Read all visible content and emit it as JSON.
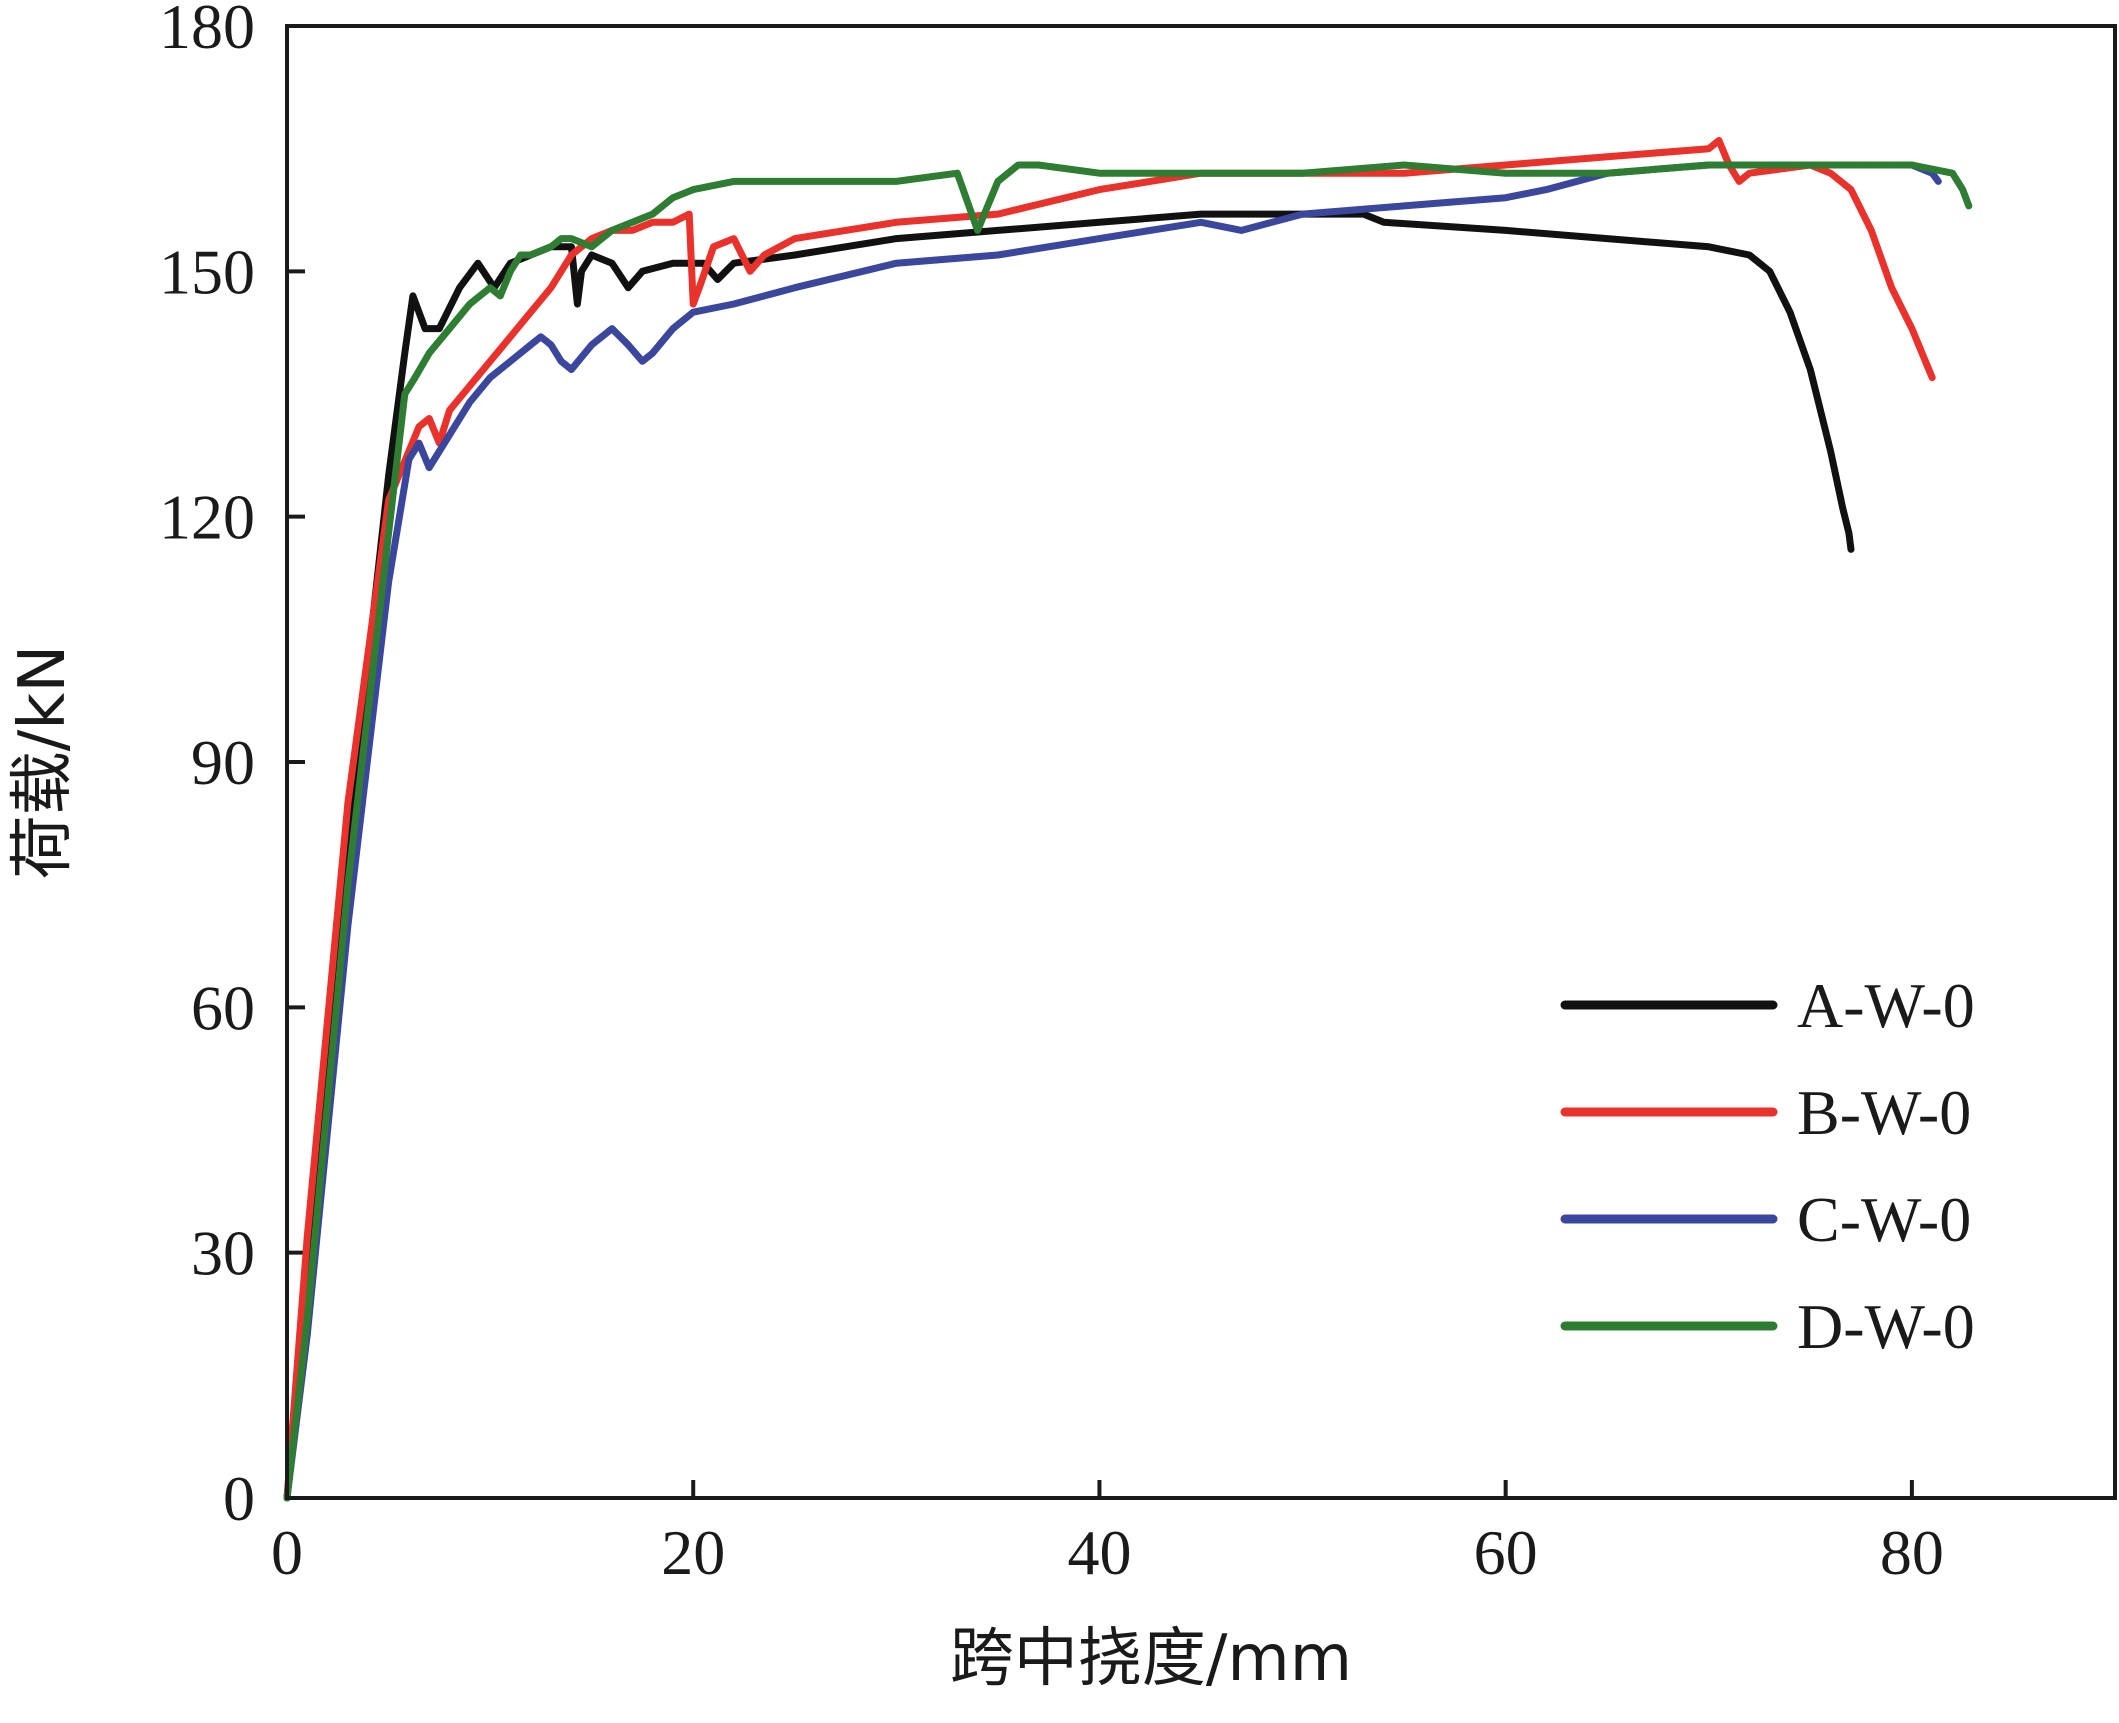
{
  "chart_data": {
    "type": "line",
    "title": "",
    "xlabel": "跨中挠度/mm",
    "ylabel": "荷载/kN",
    "xlim": [
      0,
      90
    ],
    "ylim": [
      0,
      180
    ],
    "xticks": [
      0,
      20,
      40,
      60,
      80
    ],
    "yticks": [
      0,
      30,
      60,
      90,
      120,
      150,
      180
    ],
    "grid": false,
    "legend_position": "bottom-right",
    "series": [
      {
        "name": "A-W-0",
        "color": "#111111",
        "x": [
          0,
          1,
          3,
          5,
          5.8,
          6.2,
          6.8,
          7.5,
          8.5,
          9.4,
          10.2,
          11,
          12,
          13,
          14,
          14.3,
          14.5,
          15,
          16,
          16.8,
          17.5,
          19,
          20.5,
          21.2,
          22,
          25,
          30,
          35,
          40,
          45,
          50,
          53,
          54,
          60,
          65,
          70,
          72,
          73,
          74,
          75,
          76,
          76.6,
          76.9,
          77
        ],
        "y": [
          0,
          25,
          80,
          125,
          140,
          147,
          143,
          143,
          148,
          151,
          148,
          151,
          152,
          153,
          153,
          146,
          150,
          152,
          151,
          148,
          150,
          151,
          151,
          149,
          151,
          152,
          154,
          155,
          156,
          157,
          157,
          157,
          156,
          155,
          154,
          153,
          152,
          150,
          145,
          138,
          128,
          121,
          118,
          116
        ]
      },
      {
        "name": "B-W-0",
        "color": "#e8322b",
        "x": [
          0,
          1,
          3,
          5,
          6,
          6.5,
          7,
          7.5,
          8,
          9,
          10,
          11,
          12,
          13,
          14,
          15,
          16,
          17,
          18,
          19,
          19.8,
          20,
          20.3,
          21,
          22,
          22.8,
          23.5,
          25,
          30,
          35,
          40,
          45,
          50,
          55,
          60,
          65,
          70,
          70.5,
          71,
          71.5,
          72,
          75,
          76,
          77,
          78,
          79,
          80,
          80.5,
          81
        ],
        "y": [
          0,
          32,
          85,
          122,
          128,
          131,
          132,
          129,
          133,
          136,
          139,
          142,
          145,
          148,
          152,
          154,
          155,
          155,
          156,
          156,
          157,
          146,
          148,
          153,
          154,
          150,
          152,
          154,
          156,
          157,
          160,
          162,
          162,
          162,
          163,
          164,
          165,
          166,
          163,
          161,
          162,
          163,
          162,
          160,
          155,
          148,
          143,
          140,
          137
        ]
      },
      {
        "name": "C-W-0",
        "color": "#3b479c",
        "x": [
          0,
          1,
          3,
          5,
          6,
          6.5,
          7,
          8,
          9,
          10,
          11,
          12,
          12.5,
          13,
          13.5,
          14,
          15,
          16,
          16.8,
          17.5,
          18,
          19,
          20,
          22,
          25,
          30,
          35,
          40,
          45,
          47,
          50,
          55,
          60,
          62,
          65,
          70,
          75,
          80,
          81,
          81.3
        ],
        "y": [
          0,
          20,
          70,
          112,
          127,
          129,
          126,
          130,
          134,
          137,
          139,
          141,
          142,
          141,
          139,
          138,
          141,
          143,
          141,
          139,
          140,
          143,
          145,
          146,
          148,
          151,
          152,
          154,
          156,
          155,
          157,
          158,
          159,
          160,
          162,
          163,
          163,
          163,
          162,
          161
        ]
      },
      {
        "name": "D-W-0",
        "color": "#2e7d32",
        "x": [
          0,
          1,
          3,
          5,
          5.8,
          6.3,
          7,
          8,
          9,
          10,
          10.5,
          11,
          11.5,
          12,
          13,
          13.5,
          14,
          15,
          16,
          17,
          18,
          19,
          20,
          22,
          25,
          30,
          33,
          34,
          34.5,
          35,
          36,
          37,
          40,
          45,
          50,
          55,
          60,
          65,
          70,
          75,
          80,
          82,
          82.5,
          82.8
        ],
        "y": [
          0,
          22,
          75,
          118,
          135,
          137,
          140,
          143,
          146,
          148,
          147,
          150,
          152,
          152,
          153,
          154,
          154,
          153,
          155,
          156,
          157,
          159,
          160,
          161,
          161,
          161,
          162,
          155,
          158,
          161,
          163,
          163,
          162,
          162,
          162,
          163,
          162,
          162,
          163,
          163,
          163,
          162,
          160,
          158
        ]
      }
    ]
  }
}
